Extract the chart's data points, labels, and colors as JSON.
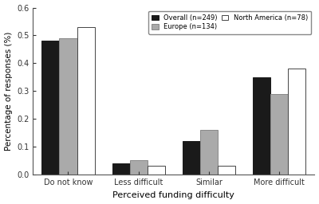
{
  "categories": [
    "Do not know",
    "Less difficult",
    "Similar",
    "More difficult"
  ],
  "series": {
    "Overall (n=249)": [
      0.48,
      0.04,
      0.12,
      0.35
    ],
    "Europe (n=134)": [
      0.49,
      0.05,
      0.16,
      0.29
    ],
    "North America (n=78)": [
      0.53,
      0.03,
      0.03,
      0.38
    ]
  },
  "colors": {
    "Overall (n=249)": "#1a1a1a",
    "Europe (n=134)": "#aaaaaa",
    "North America (n=78)": "#ffffff"
  },
  "edgecolors": {
    "Overall (n=249)": "#1a1a1a",
    "Europe (n=134)": "#888888",
    "North America (n=78)": "#444444"
  },
  "ylabel": "Percentage of responses (%)",
  "xlabel": "Perceived funding difficulty",
  "ylim": [
    0.0,
    0.6
  ],
  "yticks": [
    0.0,
    0.1,
    0.2,
    0.3,
    0.4,
    0.5,
    0.6
  ],
  "bar_width": 0.2,
  "group_positions": [
    0.35,
    1.15,
    1.95,
    2.75
  ],
  "background_color": "#ffffff",
  "legend_order": [
    "Overall (n=249)",
    "Europe (n=134)",
    "North America (n=78)"
  ]
}
